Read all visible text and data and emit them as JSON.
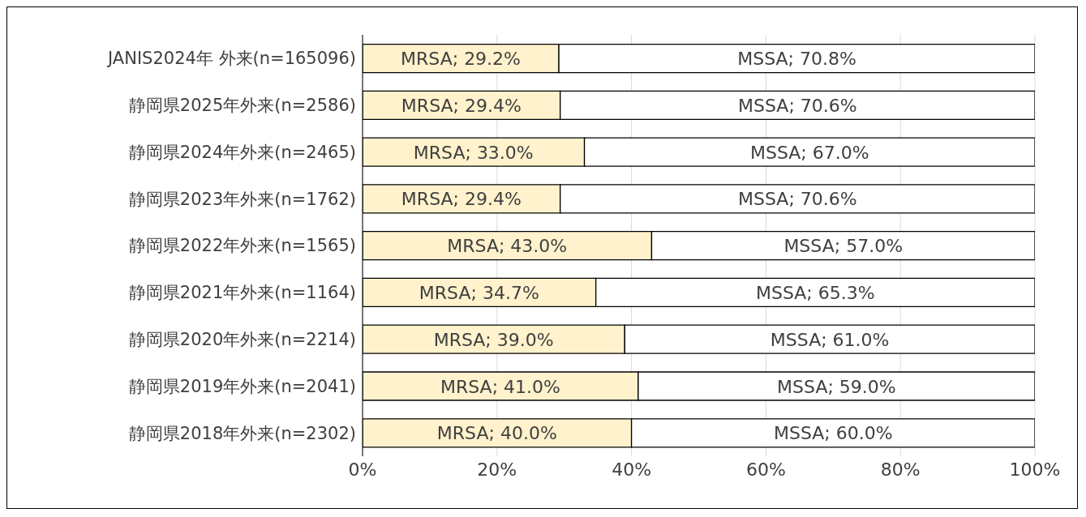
{
  "chart_data": {
    "type": "bar",
    "orientation": "horizontal",
    "stacked": true,
    "categories": [
      "JANIS2024年 外来(n=165096)",
      "静岡県2025年外来(n=2586)",
      "静岡県2024年外来(n=2465)",
      "静岡県2023年外来(n=1762)",
      "静岡県2022年外来(n=1565)",
      "静岡県2021年外来(n=1164)",
      "静岡県2020年外来(n=2214)",
      "静岡県2019年外来(n=2041)",
      "静岡県2018年外来(n=2302)"
    ],
    "series": [
      {
        "color": "#fff2cc",
        "values": [
          29.2,
          29.4,
          33.0,
          29.4,
          43.0,
          34.7,
          39.0,
          41.0,
          40.0
        ],
        "value_labels": [
          "MRSA; 29.2%",
          "MRSA; 29.4%",
          "MRSA; 33.0%",
          "MRSA; 29.4%",
          "MRSA; 43.0%",
          "MRSA; 34.7%",
          "MRSA; 39.0%",
          "MRSA; 41.0%",
          "MRSA; 40.0%"
        ]
      },
      {
        "color": "#ffffff",
        "values": [
          70.8,
          70.6,
          67.0,
          70.6,
          57.0,
          65.3,
          61.0,
          59.0,
          60.0
        ],
        "value_labels": [
          "MSSA; 70.8%",
          "MSSA; 70.6%",
          "MSSA; 67.0%",
          "MSSA; 70.6%",
          "MSSA; 57.0%",
          "MSSA; 65.3%",
          "MSSA; 61.0%",
          "MSSA; 59.0%",
          "MSSA; 60.0%"
        ]
      }
    ],
    "xlim": [
      0,
      100
    ],
    "xticks": [
      {
        "value": 0,
        "label": "0%"
      },
      {
        "value": 20,
        "label": "20%"
      },
      {
        "value": 40,
        "label": "40%"
      },
      {
        "value": 60,
        "label": "60%"
      },
      {
        "value": 80,
        "label": "80%"
      },
      {
        "value": 100,
        "label": "100%"
      }
    ],
    "grid": "x",
    "legend": false
  }
}
